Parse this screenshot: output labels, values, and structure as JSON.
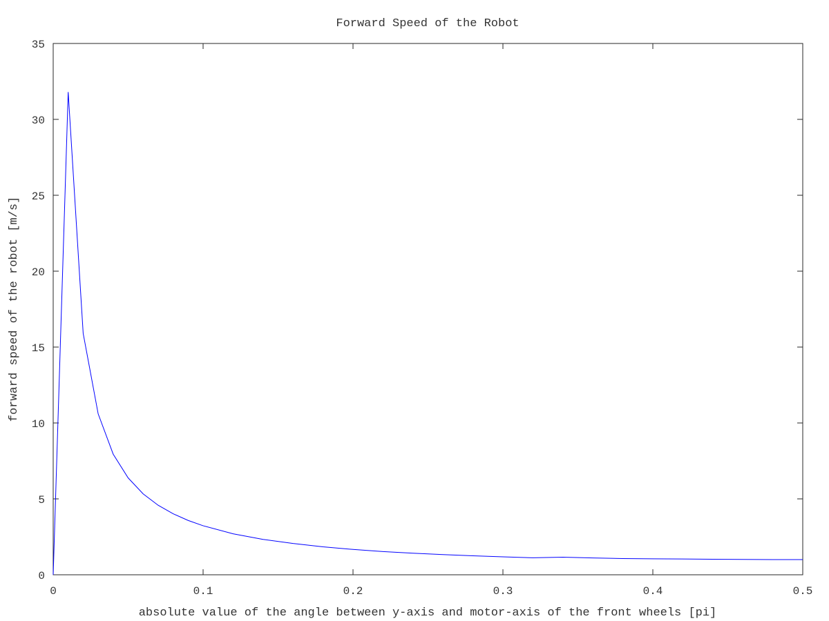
{
  "chart_data": {
    "type": "line",
    "title": "Forward Speed of the Robot",
    "xlabel": "absolute value of the angle between y-axis and motor-axis of the front wheels [pi]",
    "ylabel": "forward speed of the robot [m/s]",
    "xlim": [
      0,
      0.5
    ],
    "ylim": [
      0,
      35
    ],
    "x_ticks": [
      0,
      0.1,
      0.2,
      0.3,
      0.4,
      0.5
    ],
    "x_tick_labels": [
      "0",
      "0.1",
      "0.2",
      "0.3",
      "0.4",
      "0.5"
    ],
    "y_ticks": [
      0,
      5,
      10,
      15,
      20,
      25,
      30,
      35
    ],
    "y_tick_labels": [
      "0",
      "5",
      "10",
      "15",
      "20",
      "25",
      "30",
      "35"
    ],
    "grid": false,
    "legend": "none",
    "series": [
      {
        "name": "forward speed",
        "color": "#0000ff",
        "x": [
          0,
          0.01,
          0.02,
          0.03,
          0.04,
          0.05,
          0.06,
          0.07,
          0.08,
          0.09,
          0.1,
          0.12,
          0.14,
          0.16,
          0.18,
          0.2,
          0.22,
          0.24,
          0.26,
          0.28,
          0.3,
          0.32,
          0.34,
          0.36,
          0.38,
          0.4,
          0.42,
          0.44,
          0.46,
          0.48,
          0.5
        ],
        "y": [
          0,
          31.8,
          15.9,
          10.6,
          7.95,
          6.38,
          5.33,
          4.58,
          4.02,
          3.58,
          3.23,
          2.7,
          2.33,
          2.06,
          1.84,
          1.67,
          1.53,
          1.42,
          1.33,
          1.25,
          1.18,
          1.12,
          1.16,
          1.11,
          1.07,
          1.05,
          1.04,
          1.02,
          1.01,
          1.0,
          1.0
        ]
      }
    ]
  }
}
